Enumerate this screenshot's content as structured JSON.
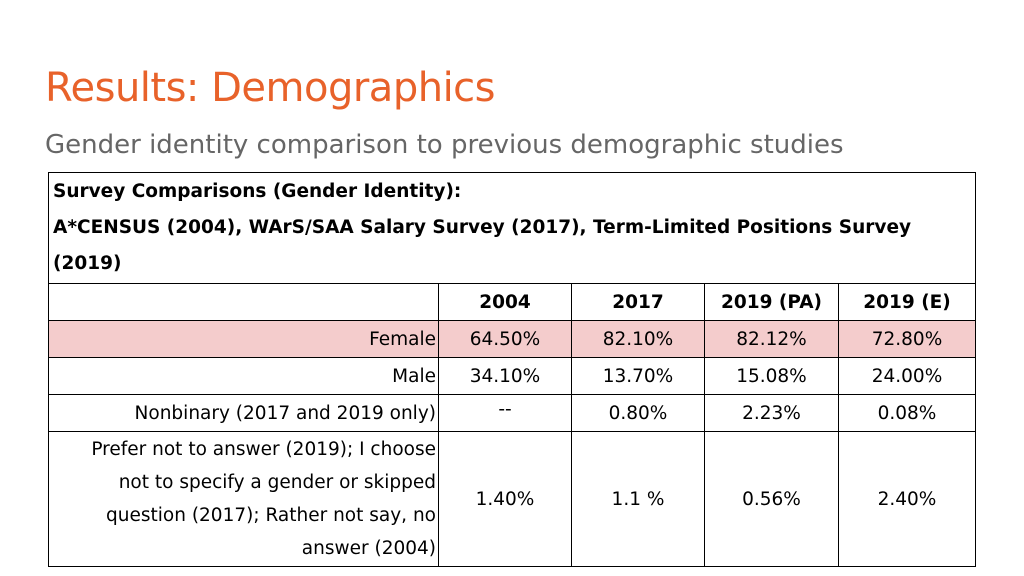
{
  "slide": {
    "title": "Results: Demographics",
    "subtitle": "Gender identity comparison to previous demographic studies",
    "colors": {
      "title": "#e8622a",
      "subtitle": "#666666",
      "highlight_row": "#f4cccc",
      "border": "#000000"
    }
  },
  "table": {
    "caption_line1": "Survey Comparisons (Gender Identity):",
    "caption_line2": "A*CENSUS (2004), WArS/SAA Salary Survey (2017), Term-Limited Positions Survey (2019)",
    "columns": [
      "2004",
      "2017",
      "2019 (PA)",
      "2019 (E)"
    ],
    "rows": [
      {
        "label": "Female",
        "values": [
          "64.50%",
          "82.10%",
          "82.12%",
          "72.80%"
        ]
      },
      {
        "label": "Male",
        "values": [
          "34.10%",
          "13.70%",
          "15.08%",
          "24.00%"
        ]
      },
      {
        "label": "Nonbinary (2017 and 2019 only)",
        "values": [
          "--",
          "0.80%",
          "2.23%",
          "0.08%"
        ]
      },
      {
        "label": "Prefer not to answer (2019); I choose not to specify a gender or skipped question (2017); Rather not say, no answer (2004)",
        "values": [
          "1.40%",
          "1.1 %",
          "0.56%",
          "2.40%"
        ]
      }
    ]
  }
}
